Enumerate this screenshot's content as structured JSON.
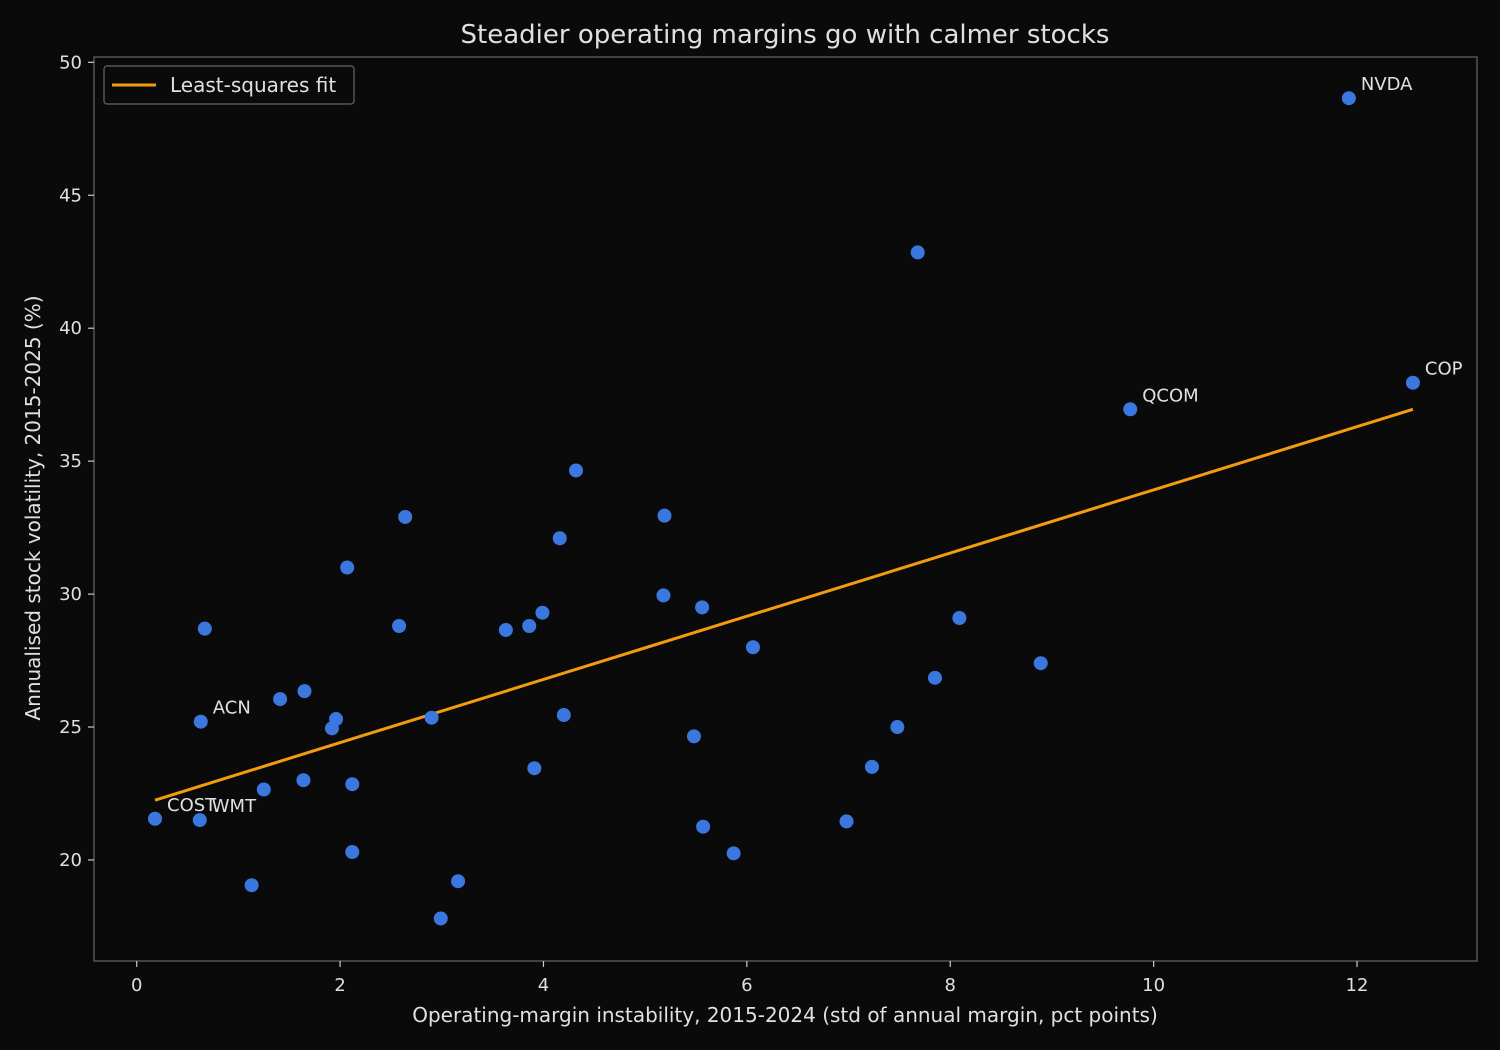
{
  "chart_data": {
    "type": "scatter",
    "title": "Steadier operating margins go with calmer stocks",
    "xlabel": "Operating-margin instability, 2015-2024 (std of annual margin, pct points)",
    "ylabel": "Annualised stock volatility, 2015-2025 (%)",
    "xlim": [
      -0.42,
      13.18
    ],
    "ylim": [
      16.2,
      50.2
    ],
    "xticks": [
      0,
      2,
      4,
      6,
      8,
      10,
      12
    ],
    "yticks": [
      20,
      25,
      30,
      35,
      40,
      45,
      50
    ],
    "grid": false,
    "legend": {
      "placement": "top-left",
      "entries": [
        "Least-squares fit"
      ]
    },
    "colors": {
      "points": "#3a78e0",
      "fit_line": "#f39c12",
      "background": "#0a0a0a",
      "axes": "#555555",
      "text": "#e0e0e0"
    },
    "fit_line": {
      "name": "Least-squares fit",
      "x": [
        0.18,
        12.55
      ],
      "y": [
        22.25,
        36.95
      ]
    },
    "points": [
      {
        "x": 0.18,
        "y": 21.55,
        "label": "COST"
      },
      {
        "x": 0.62,
        "y": 21.5,
        "label": "WMT"
      },
      {
        "x": 0.63,
        "y": 25.2,
        "label": "ACN"
      },
      {
        "x": 0.67,
        "y": 28.7
      },
      {
        "x": 1.13,
        "y": 19.05
      },
      {
        "x": 1.25,
        "y": 22.65
      },
      {
        "x": 1.41,
        "y": 26.05
      },
      {
        "x": 1.64,
        "y": 23.0
      },
      {
        "x": 1.65,
        "y": 26.35
      },
      {
        "x": 1.92,
        "y": 24.95
      },
      {
        "x": 1.96,
        "y": 25.3
      },
      {
        "x": 2.07,
        "y": 31.0
      },
      {
        "x": 2.12,
        "y": 22.85
      },
      {
        "x": 2.12,
        "y": 20.3
      },
      {
        "x": 2.58,
        "y": 28.8
      },
      {
        "x": 2.64,
        "y": 32.9
      },
      {
        "x": 2.9,
        "y": 25.35
      },
      {
        "x": 2.99,
        "y": 17.8
      },
      {
        "x": 3.16,
        "y": 19.2
      },
      {
        "x": 3.63,
        "y": 28.65
      },
      {
        "x": 3.86,
        "y": 28.8
      },
      {
        "x": 3.91,
        "y": 23.45
      },
      {
        "x": 3.99,
        "y": 29.3
      },
      {
        "x": 4.16,
        "y": 32.1
      },
      {
        "x": 4.2,
        "y": 25.45
      },
      {
        "x": 4.32,
        "y": 34.65
      },
      {
        "x": 5.18,
        "y": 29.95
      },
      {
        "x": 5.19,
        "y": 32.95
      },
      {
        "x": 5.48,
        "y": 24.65
      },
      {
        "x": 5.56,
        "y": 29.5
      },
      {
        "x": 5.57,
        "y": 21.25
      },
      {
        "x": 5.87,
        "y": 20.25
      },
      {
        "x": 6.06,
        "y": 28.0
      },
      {
        "x": 6.98,
        "y": 21.45
      },
      {
        "x": 7.23,
        "y": 23.5
      },
      {
        "x": 7.48,
        "y": 25.0
      },
      {
        "x": 7.68,
        "y": 42.85
      },
      {
        "x": 7.85,
        "y": 26.85
      },
      {
        "x": 8.09,
        "y": 29.1
      },
      {
        "x": 8.89,
        "y": 27.4
      },
      {
        "x": 9.77,
        "y": 36.95,
        "label": "QCOM"
      },
      {
        "x": 11.92,
        "y": 48.65,
        "label": "NVDA"
      },
      {
        "x": 12.55,
        "y": 37.95,
        "label": "COP"
      }
    ]
  }
}
